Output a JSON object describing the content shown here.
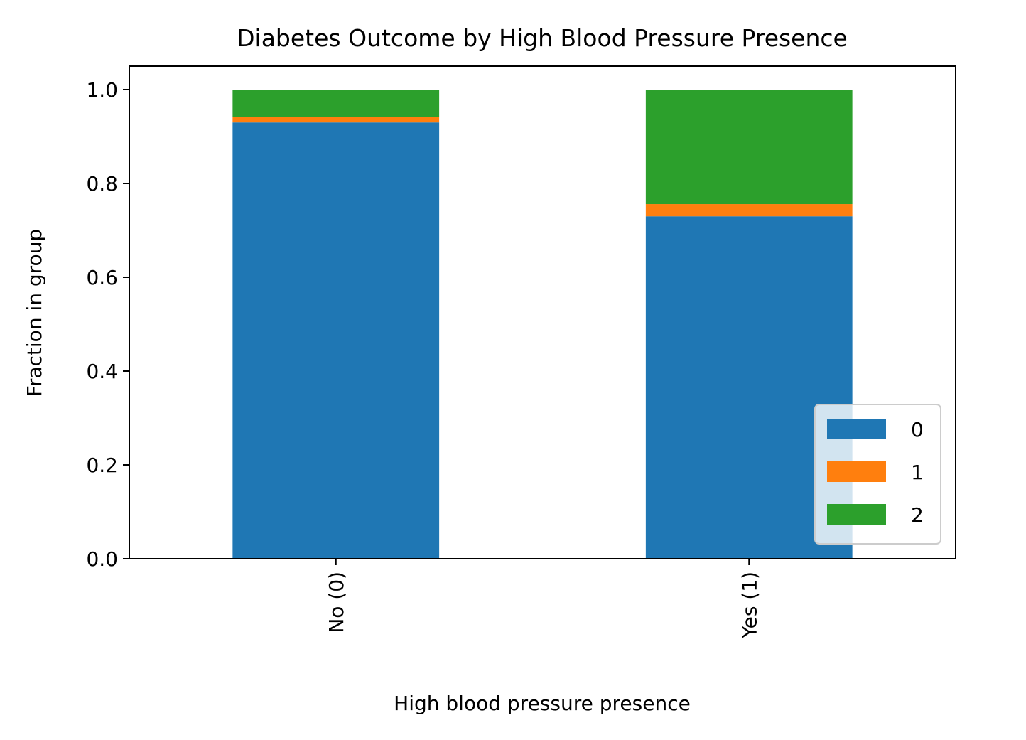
{
  "chart_data": {
    "type": "bar",
    "stacked": true,
    "title": "Diabetes Outcome by High Blood Pressure Presence",
    "xlabel": "High blood pressure presence",
    "ylabel": "Fraction in group",
    "categories": [
      "No (0)",
      "Yes (1)"
    ],
    "series": [
      {
        "name": "0",
        "color": "#1f77b4",
        "values": [
          0.93,
          0.73
        ]
      },
      {
        "name": "1",
        "color": "#ff7f0e",
        "values": [
          0.012,
          0.026
        ]
      },
      {
        "name": "2",
        "color": "#2ca02c",
        "values": [
          0.058,
          0.244
        ]
      }
    ],
    "ylim": [
      0,
      1.05
    ],
    "yticks": [
      "0.0",
      "0.2",
      "0.4",
      "0.6",
      "0.8",
      "1.0"
    ],
    "grid": false,
    "legend_position": "lower right"
  }
}
